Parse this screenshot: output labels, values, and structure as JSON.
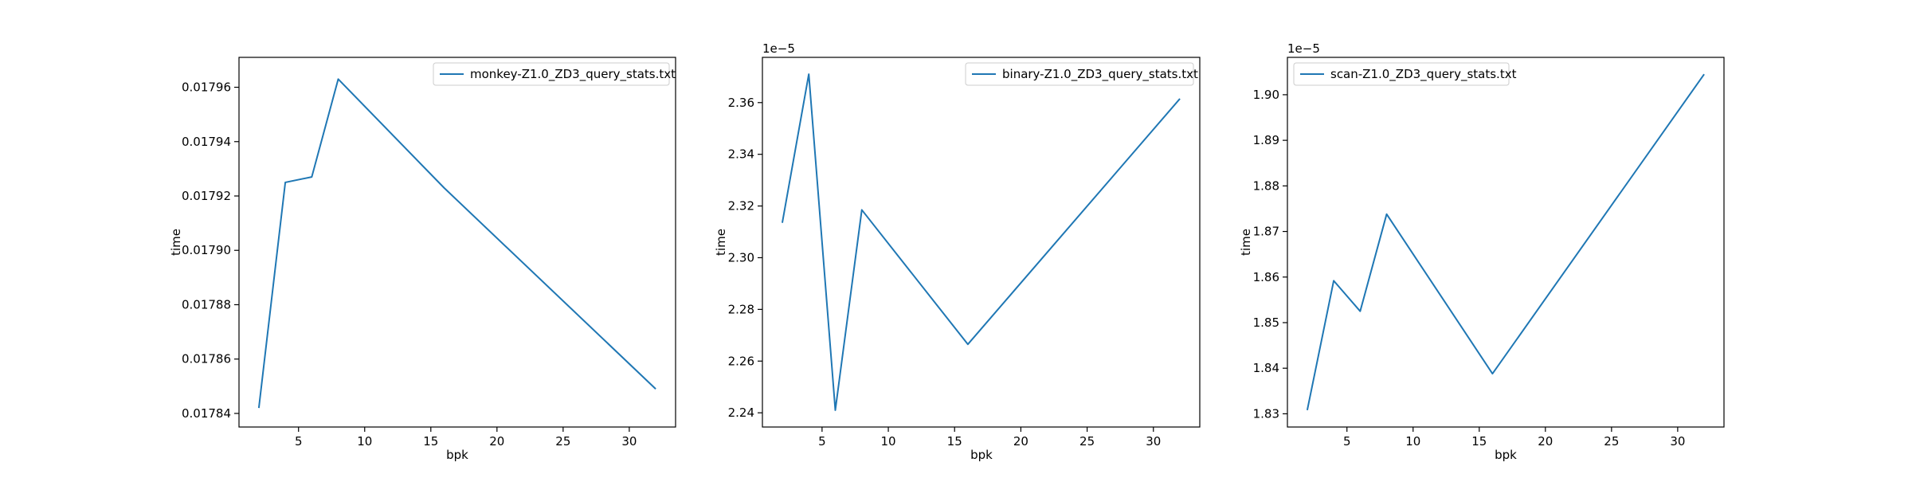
{
  "chart_data": [
    {
      "type": "line",
      "xlabel": "bpk",
      "ylabel": "time",
      "x": [
        2,
        4,
        6,
        8,
        16,
        32
      ],
      "series": [
        {
          "name": "monkey-Z1.0_ZD3_query_stats.txt",
          "values": [
            0.017842,
            0.017925,
            0.017927,
            0.017963,
            0.017923,
            0.017849
          ]
        }
      ],
      "xlim": [
        0.5,
        33.5
      ],
      "ylim": [
        0.017835,
        0.017971
      ],
      "xticks": [
        5,
        10,
        15,
        20,
        25,
        30
      ],
      "yticks": [
        0.01784,
        0.01786,
        0.01788,
        0.0179,
        0.01792,
        0.01794,
        0.01796
      ],
      "ytick_labels": [
        "0.01784",
        "0.01786",
        "0.01788",
        "0.01790",
        "0.01792",
        "0.01794",
        "0.01796"
      ],
      "offset_text": "",
      "legend": "upper right",
      "grid": false,
      "color": "#1f77b4"
    },
    {
      "type": "line",
      "xlabel": "bpk",
      "ylabel": "time",
      "x": [
        2,
        4,
        6,
        8,
        16,
        32
      ],
      "series": [
        {
          "name": "binary-Z1.0_ZD3_query_stats.txt",
          "values": [
            2.3135,
            2.371,
            2.241,
            2.3185,
            2.2665,
            2.3615
          ]
        }
      ],
      "xlim": [
        0.5,
        33.5
      ],
      "ylim": [
        2.2345,
        2.3775
      ],
      "xticks": [
        5,
        10,
        15,
        20,
        25,
        30
      ],
      "yticks": [
        2.24,
        2.26,
        2.28,
        2.3,
        2.32,
        2.34,
        2.36
      ],
      "ytick_labels": [
        "2.24",
        "2.26",
        "2.28",
        "2.30",
        "2.32",
        "2.34",
        "2.36"
      ],
      "offset_text": "1e−5",
      "legend": "upper right",
      "grid": false,
      "color": "#1f77b4"
    },
    {
      "type": "line",
      "xlabel": "bpk",
      "ylabel": "time",
      "x": [
        2,
        4,
        6,
        8,
        16,
        32
      ],
      "series": [
        {
          "name": "scan-Z1.0_ZD3_query_stats.txt",
          "values": [
            1.8308,
            1.8592,
            1.8525,
            1.8738,
            1.8388,
            1.9045
          ]
        }
      ],
      "xlim": [
        0.5,
        33.5
      ],
      "ylim": [
        1.8271,
        1.9082
      ],
      "xticks": [
        5,
        10,
        15,
        20,
        25,
        30
      ],
      "yticks": [
        1.83,
        1.84,
        1.85,
        1.86,
        1.87,
        1.88,
        1.89,
        1.9
      ],
      "ytick_labels": [
        "1.83",
        "1.84",
        "1.85",
        "1.86",
        "1.87",
        "1.88",
        "1.89",
        "1.90"
      ],
      "offset_text": "1e−5",
      "legend": "upper left",
      "grid": false,
      "color": "#1f77b4"
    }
  ]
}
